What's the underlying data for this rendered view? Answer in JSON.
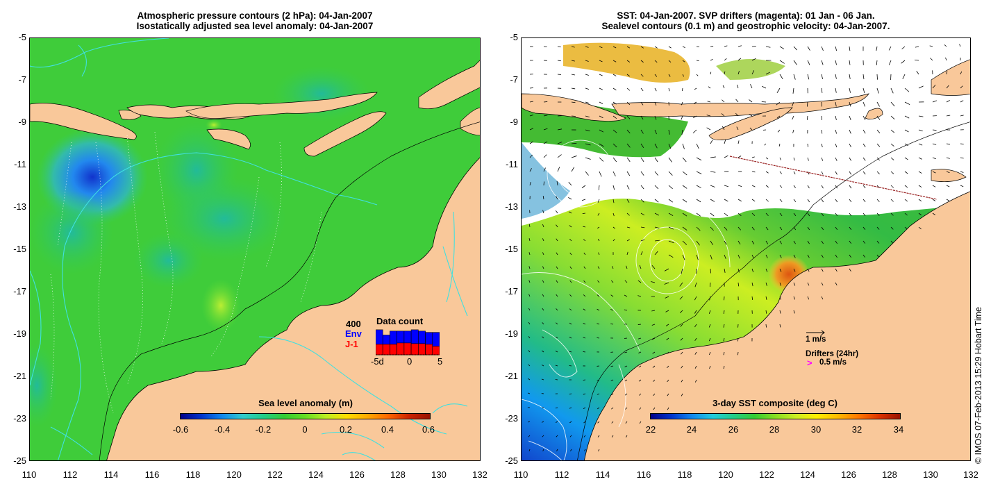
{
  "left_panel": {
    "title_line1": "Atmospheric pressure contours (2 hPa): 04-Jan-2007",
    "title_line2": "Isostatically adjusted sea level anomaly: 04-Jan-2007",
    "colorbar_title": "Sea level anomaly (m)",
    "colorbar_ticks": [
      "-0.6",
      "-0.4",
      "-0.2",
      "0",
      "0.2",
      "0.4",
      "0.6"
    ],
    "inset": {
      "title": "Data count",
      "count_label": "400",
      "env_label": "Env",
      "j1_label": "J-1",
      "x_ticks": [
        "-5d",
        "0",
        "5"
      ],
      "env_values": [
        380,
        300,
        360,
        360,
        360,
        380,
        360,
        340,
        340
      ],
      "j1_values": [
        160,
        160,
        160,
        180,
        180,
        170,
        170,
        160,
        130
      ],
      "env_color": "#0000ff",
      "j1_color": "#ff0000"
    }
  },
  "right_panel": {
    "title_line1": "SST: 04-Jan-2007. SVP drifters (magenta): 01 Jan - 06 Jan.",
    "title_line2": "Sealevel contours (0.1 m) and geostrophic velocity: 04-Jan-2007.",
    "colorbar_title": "3-day SST composite (deg C)",
    "colorbar_ticks": [
      "22",
      "24",
      "26",
      "28",
      "30",
      "32",
      "34"
    ],
    "velocity_legend": "1 m/s",
    "drifter_legend_title": "Drifters (24hr)",
    "drifter_legend_symbol": ">",
    "drifter_legend_value": "0.5 m/s",
    "drifter_color": "#ff00ff"
  },
  "axes": {
    "y_ticks": [
      "-5",
      "-7",
      "-9",
      "-11",
      "-13",
      "-15",
      "-17",
      "-19",
      "-21",
      "-23",
      "-25"
    ],
    "x_ticks": [
      "110",
      "112",
      "114",
      "116",
      "118",
      "120",
      "122",
      "124",
      "126",
      "128",
      "130",
      "132"
    ],
    "lon_range": [
      110,
      132
    ],
    "lat_range": [
      -25,
      -5
    ]
  },
  "credit": "© IMOS 07-Feb-2013 15:29 Hobart Time",
  "colors": {
    "land": "#f9c89a",
    "ocean_green": "#33cc33",
    "pressure_contour": "#40e0e0"
  }
}
